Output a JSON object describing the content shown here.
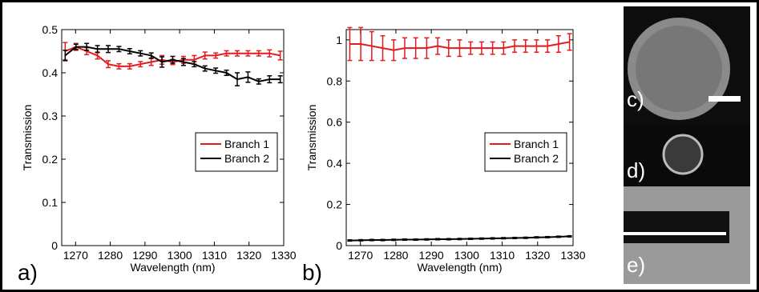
{
  "chart_data": [
    {
      "type": "line",
      "panel_label": "a)",
      "xlabel": "Wavelength (nm)",
      "ylabel": "Transmission",
      "x": [
        1267,
        1270.1,
        1273.2,
        1276.3,
        1279.4,
        1282.5,
        1285.6,
        1288.7,
        1291.8,
        1294.9,
        1298,
        1301.1,
        1304.2,
        1307.3,
        1310.4,
        1313.5,
        1316.6,
        1319.7,
        1322.8,
        1325.9,
        1329
      ],
      "xlim": [
        1266,
        1330
      ],
      "xticks": [
        1270,
        1280,
        1290,
        1300,
        1310,
        1320,
        1330
      ],
      "ylim": [
        0,
        0.5
      ],
      "yticks": [
        0,
        0.1,
        0.2,
        0.3,
        0.4,
        0.5
      ],
      "legend": "center right",
      "series": [
        {
          "name": "Branch 1",
          "color": "#e41a1c",
          "values": [
            0.45,
            0.46,
            0.45,
            0.44,
            0.42,
            0.415,
            0.415,
            0.42,
            0.425,
            0.43,
            0.425,
            0.43,
            0.43,
            0.44,
            0.44,
            0.445,
            0.445,
            0.445,
            0.445,
            0.445,
            0.44
          ],
          "errors": [
            0.02,
            0.008,
            0.008,
            0.008,
            0.008,
            0.006,
            0.006,
            0.006,
            0.008,
            0.01,
            0.006,
            0.008,
            0.01,
            0.008,
            0.006,
            0.006,
            0.006,
            0.006,
            0.006,
            0.008,
            0.01
          ]
        },
        {
          "name": "Branch 2",
          "color": "#000000",
          "values": [
            0.44,
            0.46,
            0.46,
            0.455,
            0.455,
            0.455,
            0.45,
            0.445,
            0.44,
            0.425,
            0.43,
            0.425,
            0.42,
            0.41,
            0.405,
            0.4,
            0.385,
            0.39,
            0.38,
            0.385,
            0.385
          ],
          "errors": [
            0.012,
            0.006,
            0.008,
            0.008,
            0.008,
            0.006,
            0.006,
            0.006,
            0.006,
            0.012,
            0.008,
            0.008,
            0.006,
            0.006,
            0.006,
            0.006,
            0.015,
            0.012,
            0.006,
            0.008,
            0.008
          ]
        }
      ]
    },
    {
      "type": "line",
      "panel_label": "b)",
      "xlabel": "Wavelength (nm)",
      "ylabel": "Transmission",
      "x": [
        1267,
        1270.1,
        1273.2,
        1276.3,
        1279.4,
        1282.5,
        1285.6,
        1288.7,
        1291.8,
        1294.9,
        1298,
        1301.1,
        1304.2,
        1307.3,
        1310.4,
        1313.5,
        1316.6,
        1319.7,
        1322.8,
        1325.9,
        1329
      ],
      "xlim": [
        1266,
        1330
      ],
      "xticks": [
        1270,
        1280,
        1290,
        1300,
        1310,
        1320,
        1330
      ],
      "ylim": [
        0,
        1.05
      ],
      "yticks": [
        0,
        0.2,
        0.4,
        0.6,
        0.8,
        1
      ],
      "legend": "center right",
      "series": [
        {
          "name": "Branch 1",
          "color": "#e41a1c",
          "values": [
            0.98,
            0.98,
            0.97,
            0.96,
            0.95,
            0.96,
            0.96,
            0.96,
            0.97,
            0.96,
            0.96,
            0.96,
            0.96,
            0.96,
            0.96,
            0.97,
            0.97,
            0.97,
            0.97,
            0.98,
            0.99
          ],
          "errors": [
            0.08,
            0.08,
            0.07,
            0.06,
            0.05,
            0.05,
            0.05,
            0.05,
            0.04,
            0.04,
            0.04,
            0.03,
            0.03,
            0.03,
            0.03,
            0.03,
            0.03,
            0.03,
            0.03,
            0.04,
            0.04
          ]
        },
        {
          "name": "Branch 2",
          "color": "#000000",
          "values": [
            0.025,
            0.026,
            0.027,
            0.027,
            0.028,
            0.029,
            0.029,
            0.03,
            0.031,
            0.031,
            0.032,
            0.033,
            0.034,
            0.035,
            0.036,
            0.037,
            0.038,
            0.04,
            0.041,
            0.043,
            0.045
          ],
          "errors": [
            0.003,
            0.003,
            0.003,
            0.003,
            0.003,
            0.003,
            0.003,
            0.003,
            0.003,
            0.003,
            0.003,
            0.003,
            0.003,
            0.003,
            0.003,
            0.003,
            0.003,
            0.003,
            0.003,
            0.003,
            0.003
          ]
        }
      ]
    }
  ],
  "images": [
    {
      "label": "c)"
    },
    {
      "label": "d)"
    },
    {
      "label": "e)"
    }
  ]
}
